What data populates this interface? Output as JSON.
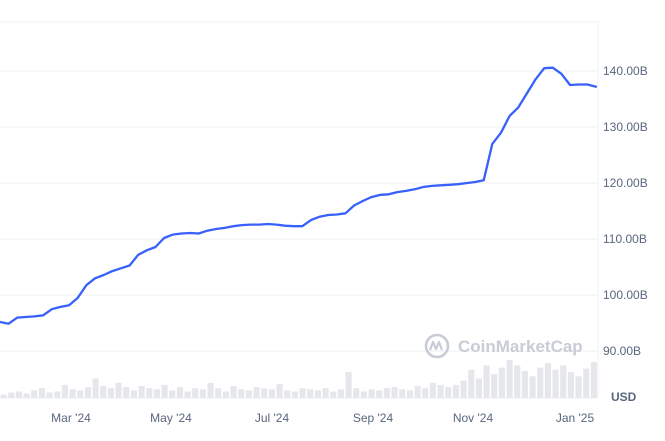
{
  "chart_data": {
    "type": "line",
    "y_unit": "USD",
    "ylim": [
      82,
      150
    ],
    "y_ticks": [
      "140.00B",
      "130.00B",
      "120.00B",
      "110.00B",
      "100.00B",
      "90.00B"
    ],
    "x_ticks": [
      "Mar '24",
      "May '24",
      "Jul '24",
      "Sep '24",
      "Nov '24",
      "Jan '25"
    ],
    "grid": true,
    "line_color": "#3861fb",
    "volume_color": "#e5e7eb",
    "watermark": "CoinMarketCap",
    "series": [
      {
        "values": [
          95.2,
          94.9,
          96.0,
          96.1,
          96.2,
          96.4,
          97.5,
          97.9,
          98.2,
          99.5,
          101.8,
          103.0,
          103.6,
          104.3,
          104.8,
          105.3,
          107.2,
          108.0,
          108.6,
          110.2,
          110.8,
          111.0,
          111.1,
          111.0,
          111.5,
          111.8,
          112.0,
          112.3,
          112.5,
          112.6,
          112.6,
          112.7,
          112.6,
          112.4,
          112.3,
          112.3,
          113.4,
          114.0,
          114.3,
          114.4,
          114.6,
          116.0,
          116.8,
          117.5,
          117.9,
          118.0,
          118.4,
          118.6,
          118.9,
          119.3,
          119.5,
          119.6,
          119.7,
          119.8,
          120.0,
          120.2,
          120.5,
          127.0,
          129.0,
          132.0,
          133.5,
          136.0,
          138.5,
          140.5,
          140.6,
          139.5,
          137.5,
          137.6,
          137.6,
          137.2
        ]
      }
    ],
    "volume": [
      3,
      5,
      6,
      4,
      7,
      9,
      5,
      6,
      12,
      8,
      7,
      10,
      18,
      11,
      9,
      14,
      10,
      7,
      11,
      9,
      8,
      12,
      7,
      10,
      6,
      9,
      8,
      14,
      9,
      6,
      11,
      8,
      7,
      10,
      9,
      8,
      13,
      7,
      6,
      9,
      8,
      7,
      9,
      6,
      8,
      24,
      9,
      6,
      8,
      7,
      9,
      10,
      8,
      7,
      11,
      9,
      14,
      12,
      10,
      12,
      16,
      26,
      18,
      30,
      22,
      28,
      35,
      30,
      25,
      20,
      28,
      32,
      26,
      30,
      24,
      20,
      27,
      33
    ]
  }
}
